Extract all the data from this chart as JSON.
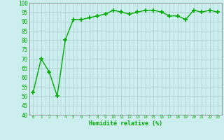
{
  "x": [
    0,
    1,
    2,
    3,
    4,
    5,
    6,
    7,
    8,
    9,
    10,
    11,
    12,
    13,
    14,
    15,
    16,
    17,
    18,
    19,
    20,
    21,
    22,
    23
  ],
  "y": [
    52,
    70,
    63,
    50,
    80,
    91,
    91,
    92,
    93,
    94,
    96,
    95,
    94,
    95,
    96,
    96,
    95,
    93,
    93,
    91,
    96,
    95,
    96,
    95
  ],
  "line_color": "#00aa00",
  "marker_color": "#00aa00",
  "bg_color": "#cceeee",
  "grid_color": "#aacccc",
  "xlabel": "Humidité relative (%)",
  "xlabel_color": "#00aa00",
  "ylim": [
    40,
    100
  ],
  "xlim": [
    -0.5,
    23.5
  ],
  "yticks": [
    40,
    45,
    50,
    55,
    60,
    65,
    70,
    75,
    80,
    85,
    90,
    95,
    100
  ],
  "xticks": [
    0,
    1,
    2,
    3,
    4,
    5,
    6,
    7,
    8,
    9,
    10,
    11,
    12,
    13,
    14,
    15,
    16,
    17,
    18,
    19,
    20,
    21,
    22,
    23
  ],
  "tick_color": "#00aa00",
  "spine_color": "#888888",
  "marker_size": 4,
  "line_width": 1.0,
  "ytick_fontsize": 5.5,
  "xtick_fontsize": 4.2,
  "xlabel_fontsize": 6.0
}
